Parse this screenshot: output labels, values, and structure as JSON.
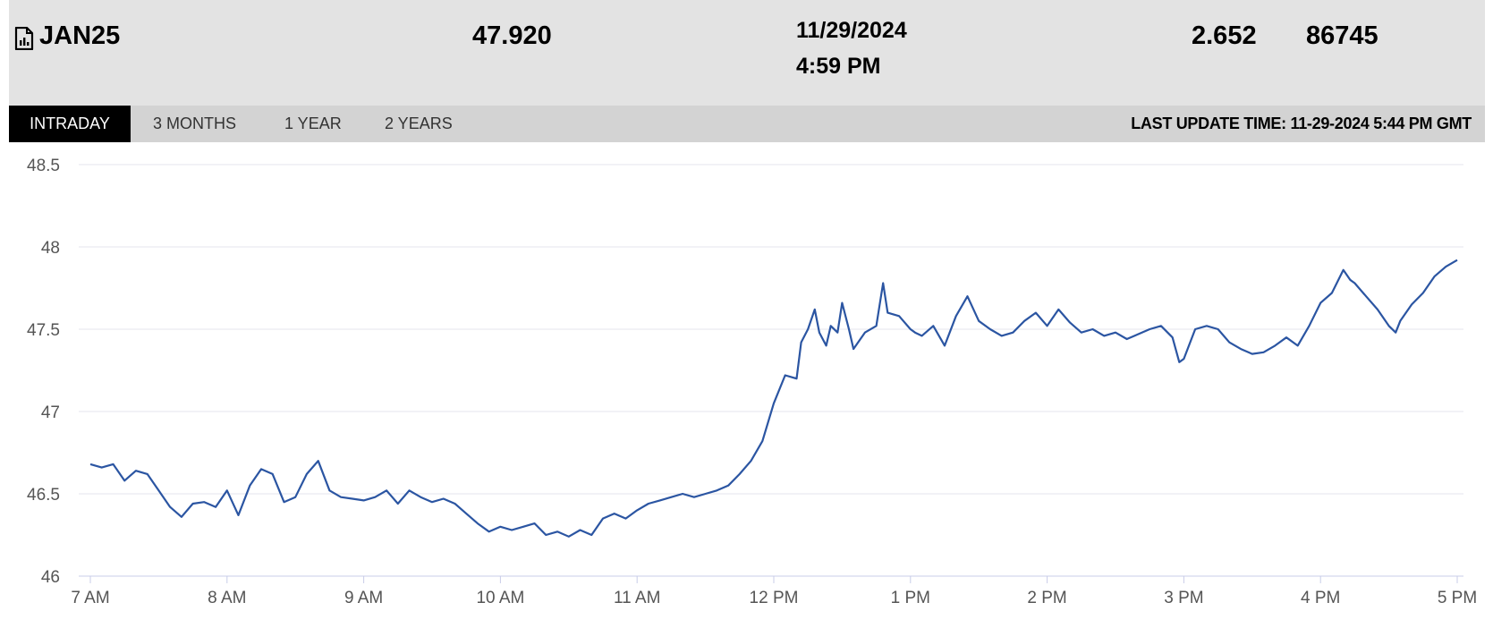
{
  "header": {
    "symbol": "JAN25",
    "last_price": "47.920",
    "date": "11/29/2024",
    "time": "4:59 PM",
    "change": "2.652",
    "volume": "86745",
    "icon": "chart-document-icon"
  },
  "tabs": [
    {
      "label": "INTRADAY",
      "active": true
    },
    {
      "label": "3 MONTHS",
      "active": false
    },
    {
      "label": "1 YEAR",
      "active": false
    },
    {
      "label": "2 YEARS",
      "active": false
    }
  ],
  "last_update": "LAST UPDATE TIME: 11-29-2024 5:44 PM GMT",
  "chart_data": {
    "type": "line",
    "title": "",
    "xlabel": "",
    "ylabel": "",
    "x_ticks": [
      "7 AM",
      "8 AM",
      "9 AM",
      "10 AM",
      "11 AM",
      "12 PM",
      "1 PM",
      "2 PM",
      "3 PM",
      "4 PM",
      "5 PM"
    ],
    "y_ticks": [
      "48.5",
      "48",
      "47.5",
      "47",
      "46.5",
      "46"
    ],
    "ylim": [
      46,
      48.5
    ],
    "xlim": [
      "7:00",
      "17:00"
    ],
    "grid": true,
    "line_color": "#2b55a2",
    "series": [
      {
        "x": [
          "7:00",
          "7:05",
          "7:10",
          "7:15",
          "7:20",
          "7:25",
          "7:30",
          "7:35",
          "7:40",
          "7:45",
          "7:50",
          "7:55",
          "8:00",
          "8:05",
          "8:10",
          "8:15",
          "8:20",
          "8:25",
          "8:30",
          "8:35",
          "8:40",
          "8:45",
          "8:50",
          "8:55",
          "9:00",
          "9:05",
          "9:10",
          "9:15",
          "9:20",
          "9:25",
          "9:30",
          "9:35",
          "9:40",
          "9:45",
          "9:50",
          "9:55",
          "10:00",
          "10:05",
          "10:10",
          "10:15",
          "10:20",
          "10:25",
          "10:30",
          "10:35",
          "10:40",
          "10:45",
          "10:50",
          "10:55",
          "11:00",
          "11:05",
          "11:10",
          "11:15",
          "11:20",
          "11:25",
          "11:30",
          "11:35",
          "11:40",
          "11:45",
          "11:50",
          "11:55",
          "12:00",
          "12:05",
          "12:10",
          "12:12",
          "12:15",
          "12:18",
          "12:20",
          "12:23",
          "12:25",
          "12:28",
          "12:30",
          "12:33",
          "12:35",
          "12:40",
          "12:45",
          "12:48",
          "12:50",
          "12:55",
          "13:00",
          "13:02",
          "13:05",
          "13:10",
          "13:15",
          "13:20",
          "13:25",
          "13:30",
          "13:35",
          "13:40",
          "13:45",
          "13:50",
          "13:55",
          "14:00",
          "14:05",
          "14:10",
          "14:15",
          "14:20",
          "14:25",
          "14:30",
          "14:35",
          "14:40",
          "14:45",
          "14:50",
          "14:55",
          "14:58",
          "15:00",
          "15:05",
          "15:10",
          "15:15",
          "15:20",
          "15:25",
          "15:30",
          "15:35",
          "15:40",
          "15:45",
          "15:50",
          "15:55",
          "16:00",
          "16:05",
          "16:10",
          "16:13",
          "16:15",
          "16:20",
          "16:25",
          "16:30",
          "16:33",
          "16:35",
          "16:40",
          "16:45",
          "16:50",
          "16:55",
          "17:00"
        ],
        "y": [
          46.68,
          46.66,
          46.68,
          46.58,
          46.64,
          46.62,
          46.52,
          46.42,
          46.36,
          46.44,
          46.45,
          46.42,
          46.52,
          46.37,
          46.55,
          46.65,
          46.62,
          46.45,
          46.48,
          46.62,
          46.7,
          46.52,
          46.48,
          46.47,
          46.46,
          46.48,
          46.52,
          46.44,
          46.52,
          46.48,
          46.45,
          46.47,
          46.44,
          46.38,
          46.32,
          46.27,
          46.3,
          46.28,
          46.3,
          46.32,
          46.25,
          46.27,
          46.24,
          46.28,
          46.25,
          46.35,
          46.38,
          46.35,
          46.4,
          46.44,
          46.46,
          46.48,
          46.5,
          46.48,
          46.5,
          46.52,
          46.55,
          46.62,
          46.7,
          46.82,
          47.05,
          47.22,
          47.2,
          47.42,
          47.5,
          47.62,
          47.48,
          47.4,
          47.52,
          47.48,
          47.66,
          47.5,
          47.38,
          47.48,
          47.52,
          47.78,
          47.6,
          47.58,
          47.5,
          47.48,
          47.46,
          47.52,
          47.4,
          47.58,
          47.7,
          47.55,
          47.5,
          47.46,
          47.48,
          47.55,
          47.6,
          47.52,
          47.62,
          47.54,
          47.48,
          47.5,
          47.46,
          47.48,
          47.44,
          47.47,
          47.5,
          47.52,
          47.45,
          47.3,
          47.32,
          47.5,
          47.52,
          47.5,
          47.42,
          47.38,
          47.35,
          47.36,
          47.4,
          47.45,
          47.4,
          47.52,
          47.66,
          47.72,
          47.86,
          47.8,
          47.78,
          47.7,
          47.62,
          47.52,
          47.48,
          47.55,
          47.65,
          47.72,
          47.82,
          47.88,
          47.92
        ]
      }
    ]
  }
}
